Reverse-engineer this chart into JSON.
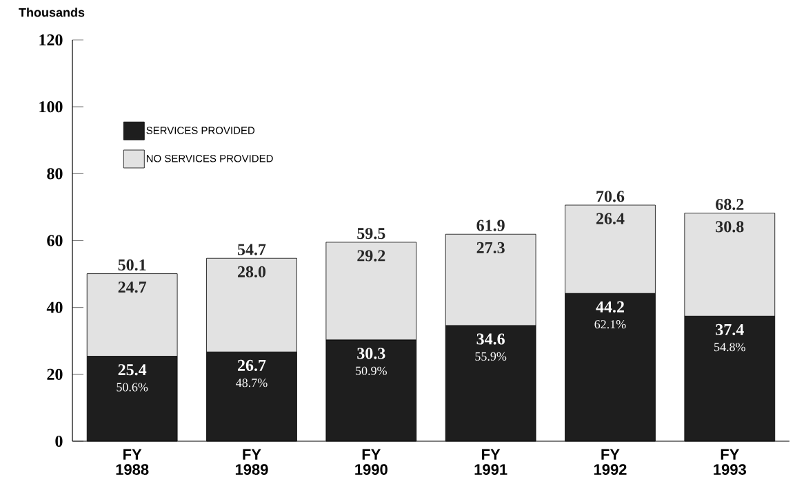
{
  "chart_data": {
    "type": "bar",
    "stacked": true,
    "ylabel": "Thousands",
    "categories": [
      "FY 1988",
      "FY 1989",
      "FY 1990",
      "FY 1991",
      "FY 1992",
      "FY 1993"
    ],
    "series": [
      {
        "name": "SERVICES PROVIDED",
        "color": "#1e1e1e",
        "values": [
          25.4,
          26.7,
          30.3,
          34.6,
          44.2,
          37.4
        ],
        "value_labels": [
          "25.4",
          "26.7",
          "30.3",
          "34.6",
          "44.2",
          "37.4"
        ]
      },
      {
        "name": "NO SERVICES PROVIDED",
        "color": "#e2e2e2",
        "values": [
          24.7,
          28.0,
          29.2,
          27.3,
          26.4,
          30.8
        ],
        "value_labels": [
          "24.7",
          "28.0",
          "29.2",
          "27.3",
          "26.4",
          "30.8"
        ]
      }
    ],
    "totals": [
      "50.1",
      "54.7",
      "59.5",
      "61.9",
      "70.6",
      "68.2"
    ],
    "annotations": [
      "50.6%",
      "48.7%",
      "50.9%",
      "55.9%",
      "62.1%",
      "54.8%"
    ],
    "ylim": [
      0,
      120
    ],
    "yticks": [
      0,
      20,
      40,
      60,
      80,
      100,
      120
    ],
    "legend": "top left",
    "grid": false
  }
}
